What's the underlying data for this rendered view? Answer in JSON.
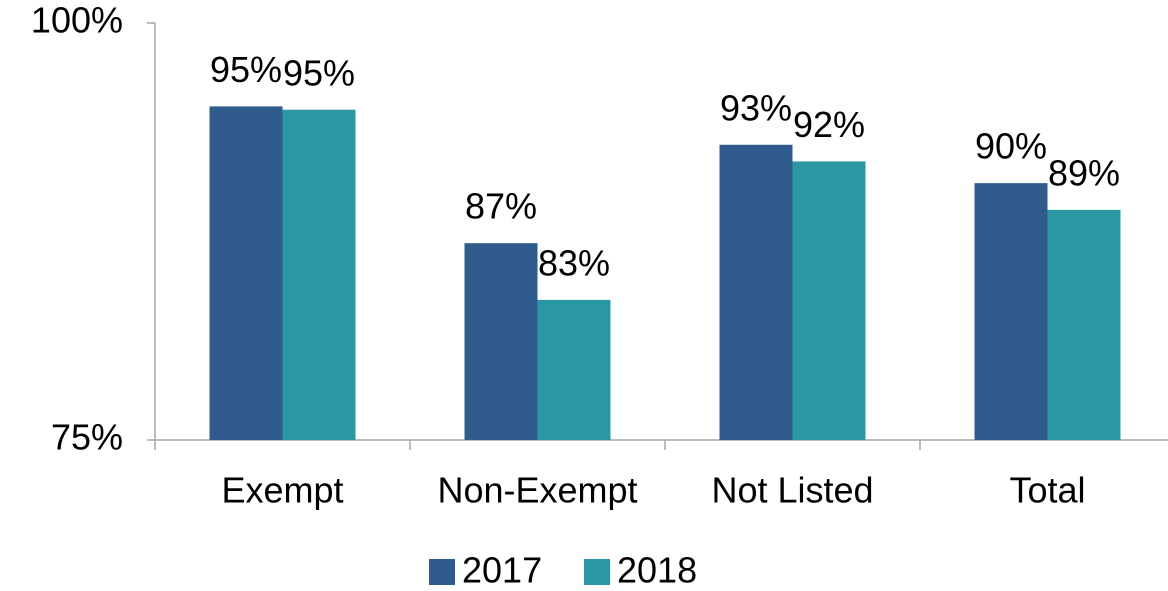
{
  "chart_data": {
    "type": "bar",
    "categories": [
      "Exempt",
      "Non-Exempt",
      "Not Listed",
      "Total"
    ],
    "series": [
      {
        "name": "2017",
        "color": "#2f5b8d",
        "values": [
          95.0,
          86.8,
          92.7,
          90.4
        ],
        "value_labels": [
          "95%",
          "87%",
          "93%",
          "90%"
        ]
      },
      {
        "name": "2018",
        "color": "#2a98a3",
        "values": [
          94.8,
          83.4,
          91.7,
          88.8
        ],
        "value_labels": [
          "95%",
          "83%",
          "92%",
          "89%"
        ]
      }
    ],
    "ylim": [
      75,
      100
    ],
    "yticks": [
      {
        "value": 75,
        "label": "75%"
      },
      {
        "value": 100,
        "label": "100%"
      }
    ],
    "grid": false,
    "legend": "bottom"
  }
}
